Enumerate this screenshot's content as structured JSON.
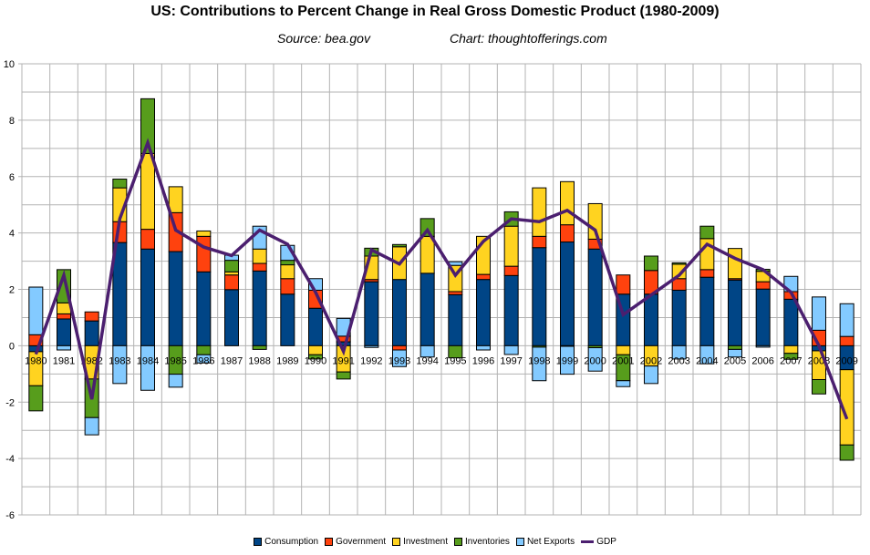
{
  "chart_data": {
    "type": "bar",
    "subtype": "stacked-bar-with-line",
    "title": "US: Contributions to Percent Change in Real Gross Domestic Product (1980-2009)",
    "source_label": "Source: bea.gov",
    "credit_label": "Chart: thoughtofferings.com",
    "xlabel": "",
    "ylabel": "",
    "ylim": [
      -6,
      10
    ],
    "yticks": [
      -6,
      -4,
      -2,
      0,
      2,
      4,
      6,
      8,
      10
    ],
    "grid": true,
    "legend_position": "bottom",
    "categories": [
      "1980",
      "1981",
      "1982",
      "1983",
      "1984",
      "1985",
      "1986",
      "1987",
      "1988",
      "1989",
      "1990",
      "1991",
      "1992",
      "1993",
      "1994",
      "1995",
      "1996",
      "1997",
      "1998",
      "1999",
      "2000",
      "2001",
      "2002",
      "2003",
      "2004",
      "2005",
      "2006",
      "2007",
      "2008",
      "2009"
    ],
    "series": [
      {
        "name": "Consumption",
        "color": "#004586",
        "kind": "bar",
        "values": [
          -0.21,
          0.95,
          0.88,
          3.66,
          3.43,
          3.34,
          2.62,
          1.99,
          2.65,
          1.83,
          1.33,
          0.14,
          2.27,
          2.35,
          2.57,
          1.81,
          2.35,
          2.49,
          3.48,
          3.68,
          3.43,
          1.83,
          1.83,
          1.97,
          2.43,
          2.33,
          2.01,
          1.65,
          -0.18,
          -0.85
        ]
      },
      {
        "name": "Government",
        "color": "#FF420E",
        "kind": "bar",
        "values": [
          0.39,
          0.18,
          0.32,
          0.74,
          0.7,
          1.38,
          1.26,
          0.52,
          0.27,
          0.55,
          0.64,
          0.2,
          0.08,
          -0.15,
          0.0,
          0.11,
          0.18,
          0.33,
          0.4,
          0.61,
          0.35,
          0.68,
          0.84,
          0.41,
          0.27,
          0.05,
          0.26,
          0.27,
          0.55,
          0.33
        ]
      },
      {
        "name": "Investment",
        "color": "#FFD320",
        "kind": "bar",
        "values": [
          -1.21,
          0.39,
          -1.18,
          1.2,
          2.69,
          0.92,
          0.19,
          0.11,
          0.51,
          0.49,
          -0.32,
          -0.93,
          0.83,
          1.16,
          1.31,
          0.93,
          1.35,
          1.42,
          1.72,
          1.53,
          1.26,
          -0.32,
          -0.72,
          0.51,
          1.1,
          1.07,
          0.37,
          -0.27,
          -1.02,
          -2.67
        ]
      },
      {
        "name": "Inventories",
        "color": "#579D1C",
        "kind": "bar",
        "values": [
          -0.89,
          1.18,
          -1.37,
          0.31,
          1.94,
          -1.01,
          -0.32,
          0.41,
          -0.13,
          0.16,
          -0.15,
          -0.25,
          0.28,
          0.08,
          0.63,
          -0.43,
          0.0,
          0.51,
          -0.05,
          -0.02,
          -0.07,
          -0.92,
          0.51,
          0.05,
          0.44,
          -0.13,
          0.07,
          -0.21,
          -0.51,
          -0.54
        ]
      },
      {
        "name": "Net Exports",
        "color": "#83CAFF",
        "kind": "bar",
        "values": [
          1.69,
          -0.15,
          -0.61,
          -1.34,
          -1.58,
          -0.46,
          -0.29,
          0.18,
          0.81,
          0.53,
          0.41,
          0.63,
          -0.06,
          -0.59,
          -0.4,
          0.13,
          -0.15,
          -0.31,
          -1.19,
          -0.99,
          -0.83,
          -0.21,
          -0.62,
          -0.47,
          -0.64,
          -0.27,
          -0.05,
          0.54,
          1.18,
          1.16
        ]
      },
      {
        "name": "GDP",
        "color": "#4B1F6F",
        "kind": "line",
        "values": [
          -0.3,
          2.5,
          -1.9,
          4.5,
          7.2,
          4.1,
          3.5,
          3.2,
          4.1,
          3.6,
          1.9,
          -0.2,
          3.4,
          2.9,
          4.1,
          2.5,
          3.7,
          4.5,
          4.4,
          4.8,
          4.1,
          1.1,
          1.8,
          2.5,
          3.6,
          3.1,
          2.7,
          1.9,
          0.0,
          -2.6
        ]
      }
    ]
  }
}
